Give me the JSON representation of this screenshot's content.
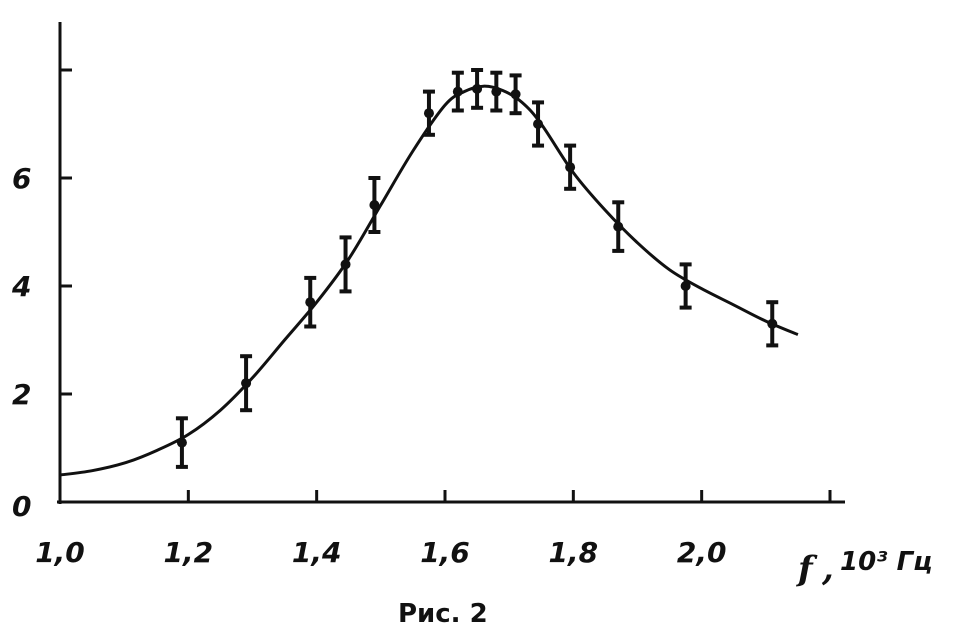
{
  "chart_data": {
    "type": "scatter",
    "title": "",
    "xlabel": "f",
    "xunit": "10³ Гц",
    "ylabel": "",
    "xlim": [
      1.0,
      2.2
    ],
    "ylim": [
      0,
      8
    ],
    "x_ticks": [
      1.0,
      1.2,
      1.4,
      1.6,
      1.8,
      2.0,
      2.2
    ],
    "x_tick_labels": [
      "1,0",
      "1,2",
      "1,4",
      "1,6",
      "1,8",
      "2,0",
      ""
    ],
    "y_ticks": [
      0,
      2,
      4,
      6,
      8
    ],
    "y_tick_labels": [
      "0",
      "2",
      "4",
      "6",
      ""
    ],
    "grid": false,
    "legend": "none",
    "points": [
      {
        "x": 1.19,
        "y": 1.1,
        "err": 0.45
      },
      {
        "x": 1.29,
        "y": 2.2,
        "err": 0.5
      },
      {
        "x": 1.39,
        "y": 3.7,
        "err": 0.45
      },
      {
        "x": 1.445,
        "y": 4.4,
        "err": 0.5
      },
      {
        "x": 1.49,
        "y": 5.5,
        "err": 0.5
      },
      {
        "x": 1.575,
        "y": 7.2,
        "err": 0.4
      },
      {
        "x": 1.62,
        "y": 7.6,
        "err": 0.35
      },
      {
        "x": 1.65,
        "y": 7.65,
        "err": 0.35
      },
      {
        "x": 1.68,
        "y": 7.6,
        "err": 0.35
      },
      {
        "x": 1.71,
        "y": 7.55,
        "err": 0.35
      },
      {
        "x": 1.745,
        "y": 7.0,
        "err": 0.4
      },
      {
        "x": 1.795,
        "y": 6.2,
        "err": 0.4
      },
      {
        "x": 1.87,
        "y": 5.1,
        "err": 0.45
      },
      {
        "x": 1.975,
        "y": 4.0,
        "err": 0.4
      },
      {
        "x": 2.11,
        "y": 3.3,
        "err": 0.4
      }
    ],
    "fit_curve": {
      "x": [
        1.0,
        1.05,
        1.1,
        1.15,
        1.2,
        1.25,
        1.3,
        1.35,
        1.4,
        1.45,
        1.5,
        1.55,
        1.6,
        1.63,
        1.66,
        1.69,
        1.72,
        1.75,
        1.8,
        1.85,
        1.9,
        1.95,
        2.0,
        2.05,
        2.1,
        2.15
      ],
      "y": [
        0.5,
        0.58,
        0.72,
        0.95,
        1.25,
        1.7,
        2.3,
        3.0,
        3.7,
        4.5,
        5.5,
        6.5,
        7.35,
        7.6,
        7.7,
        7.62,
        7.4,
        7.0,
        6.1,
        5.4,
        4.8,
        4.3,
        3.95,
        3.65,
        3.35,
        3.1
      ]
    }
  },
  "caption": "Рис. 2"
}
